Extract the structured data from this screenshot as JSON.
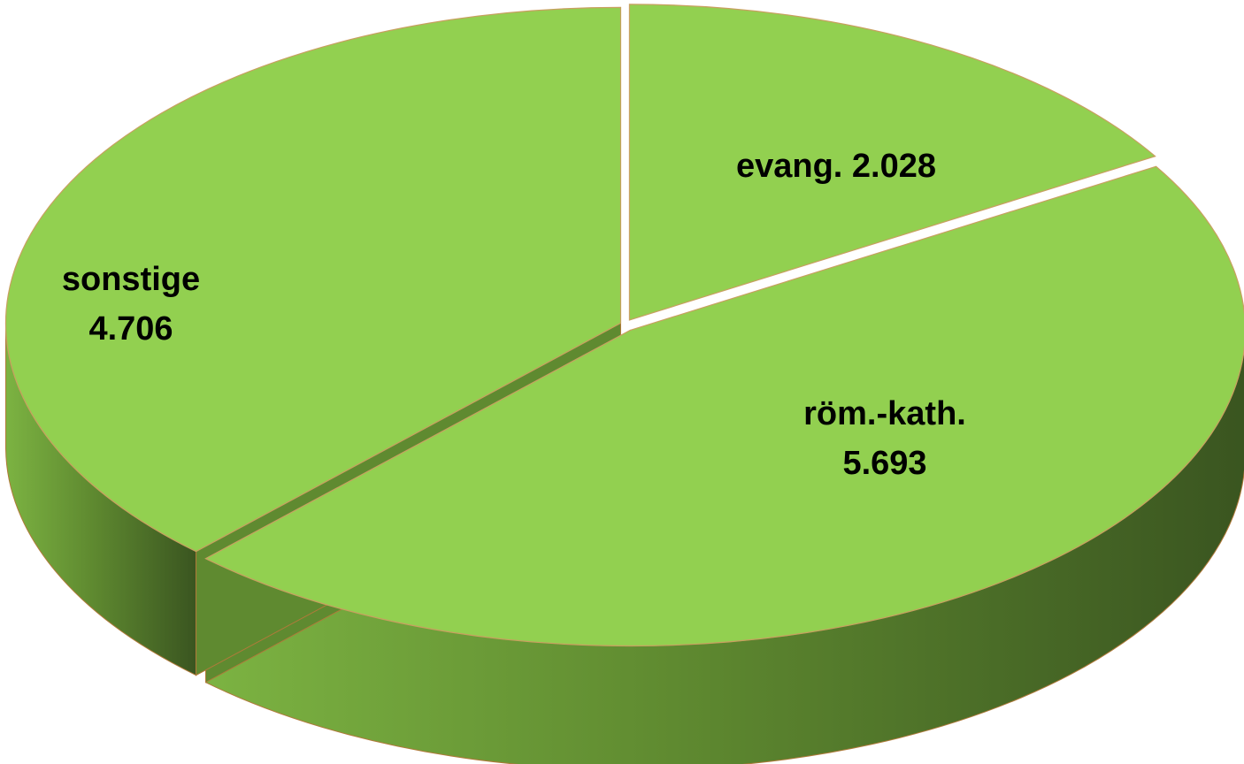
{
  "chart_data": {
    "type": "pie",
    "categories": [
      "evang.",
      "röm.-kath.",
      "sonstige"
    ],
    "values": [
      2028,
      5693,
      4706
    ],
    "value_labels": [
      "2.028",
      "5.693",
      "4.706"
    ],
    "color": "#92d050"
  }
}
